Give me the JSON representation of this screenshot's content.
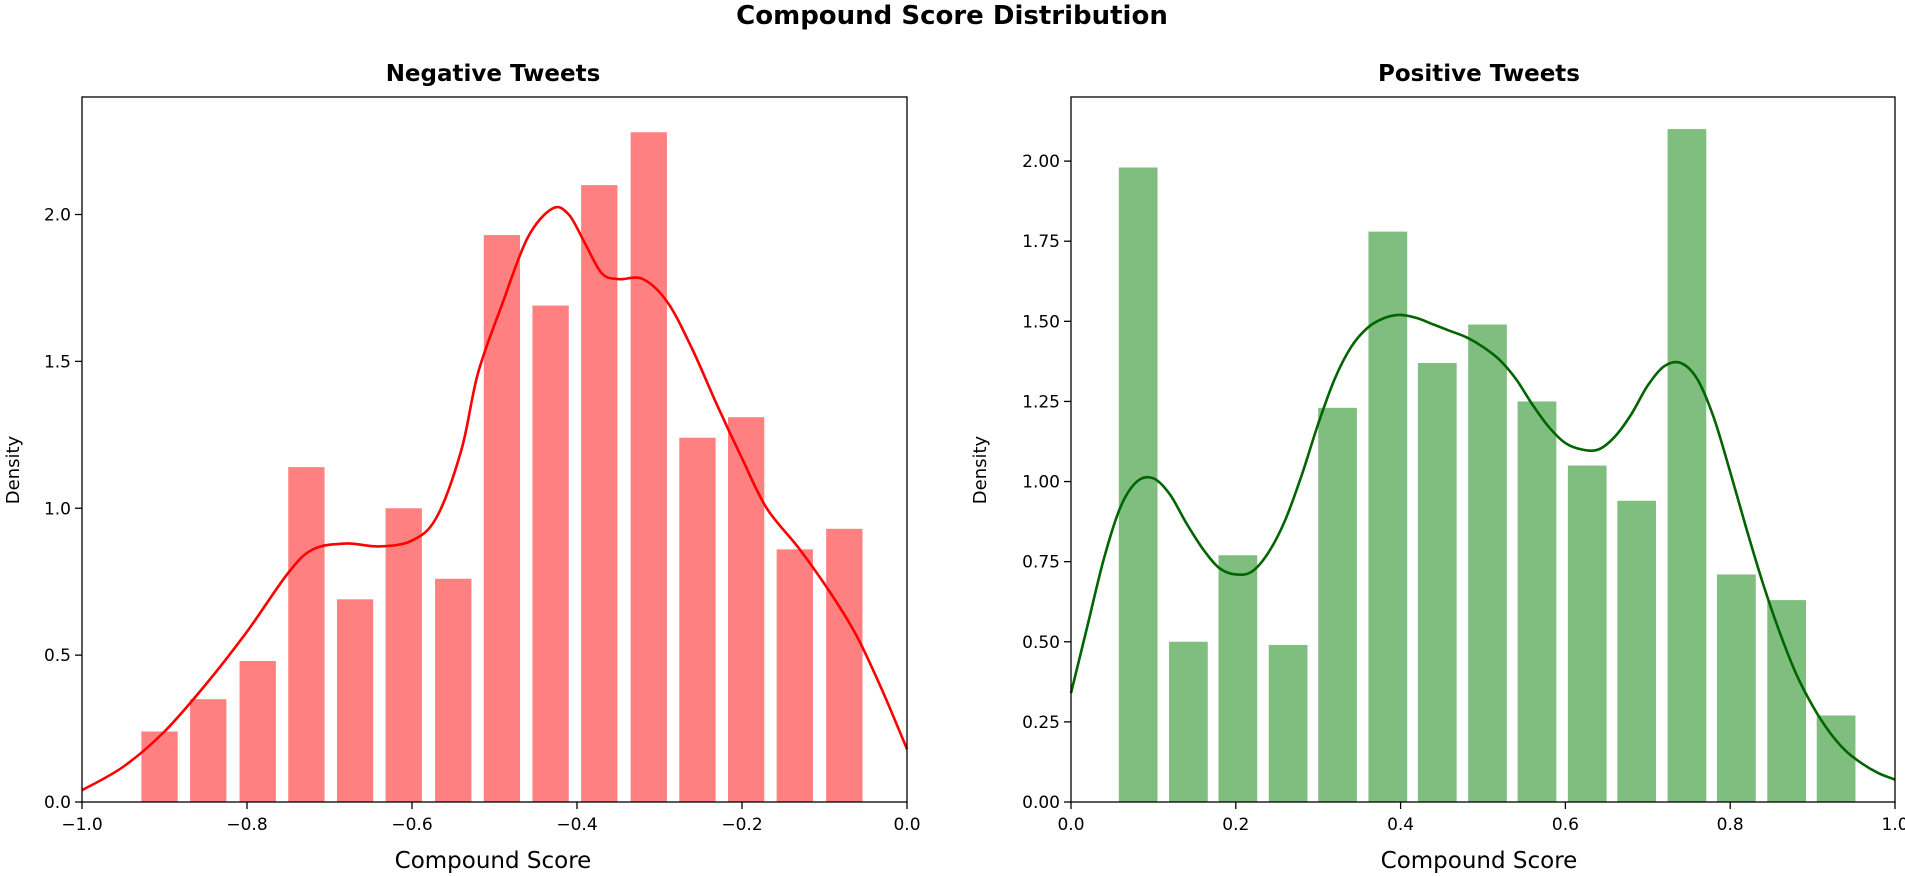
{
  "figure": {
    "title": "Compound Score Distribution"
  },
  "chart_data": [
    {
      "type": "bar",
      "subtype": "histogram with KDE",
      "title": "Negative Tweets",
      "xlabel": "Compound Score",
      "ylabel": "Density",
      "xlim": [
        -1.0,
        0.0
      ],
      "ylim": [
        0,
        2.4
      ],
      "xticks": [
        -1.0,
        -0.8,
        -0.6,
        -0.4,
        -0.2,
        0.0
      ],
      "xtick_labels": [
        "−1.0",
        "−0.8",
        "−0.6",
        "−0.4",
        "−0.2",
        "0.0"
      ],
      "yticks": [
        0.0,
        0.5,
        1.0,
        1.5,
        2.0
      ],
      "ytick_labels": [
        "0.0",
        "0.5",
        "1.0",
        "1.5",
        "2.0"
      ],
      "bar_color": "#ff8080",
      "line_color": "#ff0000",
      "bin_edges": [
        -0.93,
        -0.871,
        -0.811,
        -0.752,
        -0.693,
        -0.634,
        -0.574,
        -0.515,
        -0.456,
        -0.397,
        -0.337,
        -0.278,
        -0.219,
        -0.16,
        -0.1,
        -0.05
      ],
      "bins": [
        {
          "x0": -0.928,
          "x1": -0.884,
          "y": 0.24
        },
        {
          "x0": -0.869,
          "x1": -0.825,
          "y": 0.35
        },
        {
          "x0": -0.809,
          "x1": -0.765,
          "y": 0.48
        },
        {
          "x0": -0.75,
          "x1": -0.706,
          "y": 1.14
        },
        {
          "x0": -0.691,
          "x1": -0.647,
          "y": 0.69
        },
        {
          "x0": -0.632,
          "x1": -0.588,
          "y": 1.0
        },
        {
          "x0": -0.572,
          "x1": -0.528,
          "y": 0.76
        },
        {
          "x0": -0.513,
          "x1": -0.469,
          "y": 1.93
        },
        {
          "x0": -0.454,
          "x1": -0.41,
          "y": 1.69
        },
        {
          "x0": -0.395,
          "x1": -0.351,
          "y": 2.1
        },
        {
          "x0": -0.335,
          "x1": -0.291,
          "y": 2.28
        },
        {
          "x0": -0.276,
          "x1": -0.232,
          "y": 1.24
        },
        {
          "x0": -0.217,
          "x1": -0.173,
          "y": 1.31
        },
        {
          "x0": -0.158,
          "x1": -0.114,
          "y": 0.86
        },
        {
          "x0": -0.098,
          "x1": -0.054,
          "y": 0.93
        }
      ],
      "kde": [
        [
          -1.0,
          0.04
        ],
        [
          -0.95,
          0.12
        ],
        [
          -0.9,
          0.24
        ],
        [
          -0.85,
          0.4
        ],
        [
          -0.8,
          0.58
        ],
        [
          -0.75,
          0.78
        ],
        [
          -0.72,
          0.86
        ],
        [
          -0.68,
          0.88
        ],
        [
          -0.64,
          0.87
        ],
        [
          -0.6,
          0.89
        ],
        [
          -0.57,
          0.97
        ],
        [
          -0.54,
          1.2
        ],
        [
          -0.52,
          1.46
        ],
        [
          -0.49,
          1.7
        ],
        [
          -0.46,
          1.92
        ],
        [
          -0.43,
          2.02
        ],
        [
          -0.41,
          2.0
        ],
        [
          -0.39,
          1.9
        ],
        [
          -0.37,
          1.8
        ],
        [
          -0.35,
          1.78
        ],
        [
          -0.32,
          1.78
        ],
        [
          -0.29,
          1.7
        ],
        [
          -0.26,
          1.54
        ],
        [
          -0.23,
          1.35
        ],
        [
          -0.2,
          1.17
        ],
        [
          -0.17,
          1.0
        ],
        [
          -0.13,
          0.86
        ],
        [
          -0.09,
          0.7
        ],
        [
          -0.06,
          0.56
        ],
        [
          -0.03,
          0.38
        ],
        [
          0.0,
          0.18
        ]
      ]
    },
    {
      "type": "bar",
      "subtype": "histogram with KDE",
      "title": "Positive Tweets",
      "xlabel": "Compound Score",
      "ylabel": "Density",
      "xlim": [
        0.0,
        1.0
      ],
      "ylim": [
        0,
        2.2
      ],
      "xticks": [
        0.0,
        0.2,
        0.4,
        0.6,
        0.8,
        1.0
      ],
      "xtick_labels": [
        "0.0",
        "0.2",
        "0.4",
        "0.6",
        "0.8",
        "1.0"
      ],
      "yticks": [
        0.0,
        0.25,
        0.5,
        0.75,
        1.0,
        1.25,
        1.5,
        1.75,
        2.0
      ],
      "ytick_labels": [
        "0.00",
        "0.25",
        "0.50",
        "0.75",
        "1.00",
        "1.25",
        "1.50",
        "1.75",
        "2.00"
      ],
      "bar_color": "#80be80",
      "line_color": "#006400",
      "bins": [
        {
          "x0": 0.058,
          "x1": 0.105,
          "y": 1.98
        },
        {
          "x0": 0.119,
          "x1": 0.166,
          "y": 0.5
        },
        {
          "x0": 0.179,
          "x1": 0.226,
          "y": 0.77
        },
        {
          "x0": 0.24,
          "x1": 0.287,
          "y": 0.49
        },
        {
          "x0": 0.3,
          "x1": 0.347,
          "y": 1.23
        },
        {
          "x0": 0.361,
          "x1": 0.408,
          "y": 1.78
        },
        {
          "x0": 0.421,
          "x1": 0.468,
          "y": 1.37
        },
        {
          "x0": 0.482,
          "x1": 0.529,
          "y": 1.49
        },
        {
          "x0": 0.542,
          "x1": 0.589,
          "y": 1.25
        },
        {
          "x0": 0.603,
          "x1": 0.65,
          "y": 1.05
        },
        {
          "x0": 0.663,
          "x1": 0.71,
          "y": 0.94
        },
        {
          "x0": 0.724,
          "x1": 0.771,
          "y": 2.1
        },
        {
          "x0": 0.784,
          "x1": 0.831,
          "y": 0.71
        },
        {
          "x0": 0.845,
          "x1": 0.892,
          "y": 0.63
        },
        {
          "x0": 0.905,
          "x1": 0.952,
          "y": 0.27
        }
      ],
      "kde": [
        [
          0.0,
          0.34
        ],
        [
          0.02,
          0.55
        ],
        [
          0.04,
          0.76
        ],
        [
          0.06,
          0.92
        ],
        [
          0.08,
          1.0
        ],
        [
          0.1,
          1.01
        ],
        [
          0.12,
          0.96
        ],
        [
          0.14,
          0.87
        ],
        [
          0.16,
          0.79
        ],
        [
          0.18,
          0.73
        ],
        [
          0.2,
          0.71
        ],
        [
          0.22,
          0.72
        ],
        [
          0.24,
          0.78
        ],
        [
          0.26,
          0.88
        ],
        [
          0.28,
          1.02
        ],
        [
          0.3,
          1.18
        ],
        [
          0.32,
          1.32
        ],
        [
          0.34,
          1.42
        ],
        [
          0.36,
          1.48
        ],
        [
          0.38,
          1.51
        ],
        [
          0.4,
          1.52
        ],
        [
          0.42,
          1.51
        ],
        [
          0.44,
          1.49
        ],
        [
          0.46,
          1.47
        ],
        [
          0.48,
          1.45
        ],
        [
          0.5,
          1.42
        ],
        [
          0.52,
          1.38
        ],
        [
          0.54,
          1.32
        ],
        [
          0.56,
          1.24
        ],
        [
          0.58,
          1.17
        ],
        [
          0.6,
          1.12
        ],
        [
          0.62,
          1.1
        ],
        [
          0.64,
          1.1
        ],
        [
          0.66,
          1.14
        ],
        [
          0.68,
          1.21
        ],
        [
          0.7,
          1.3
        ],
        [
          0.72,
          1.36
        ],
        [
          0.74,
          1.37
        ],
        [
          0.76,
          1.32
        ],
        [
          0.78,
          1.2
        ],
        [
          0.8,
          1.03
        ],
        [
          0.82,
          0.85
        ],
        [
          0.84,
          0.68
        ],
        [
          0.86,
          0.53
        ],
        [
          0.88,
          0.4
        ],
        [
          0.9,
          0.3
        ],
        [
          0.92,
          0.22
        ],
        [
          0.94,
          0.16
        ],
        [
          0.96,
          0.12
        ],
        [
          0.98,
          0.09
        ],
        [
          1.0,
          0.07
        ]
      ]
    }
  ]
}
